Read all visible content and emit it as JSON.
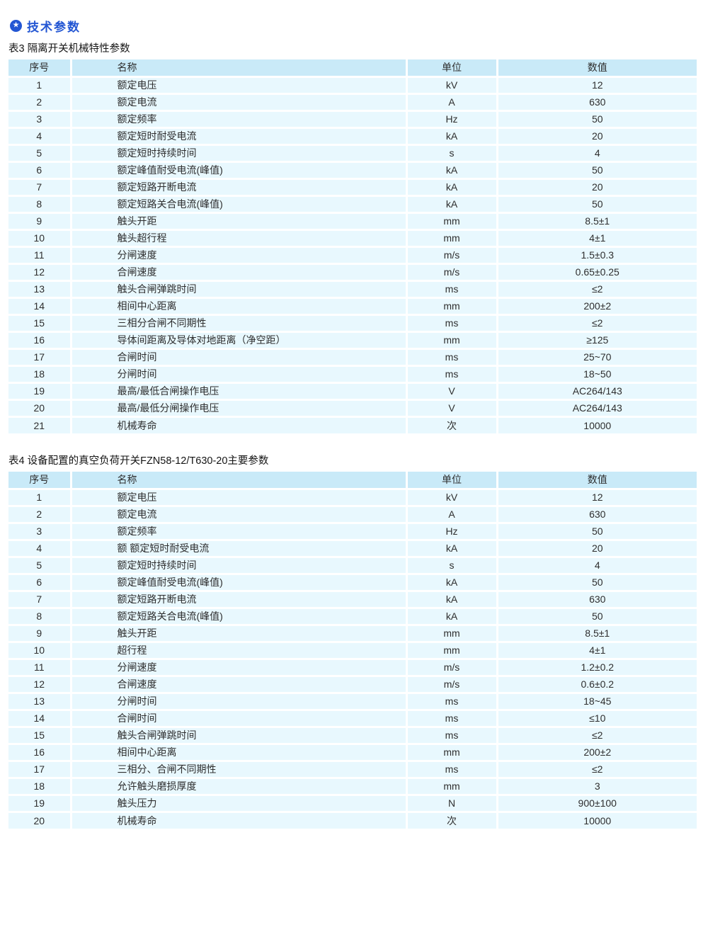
{
  "section": {
    "title": "技术参数",
    "icon": "star-circle",
    "star_glyph": "★"
  },
  "theme": {
    "accent": "#2356d3",
    "table_header_bg": "#c9eaf8",
    "table_row_bg": "#e8f8fe",
    "text": "#2e2e2e"
  },
  "tables": [
    {
      "caption": "表3 隔离开关机械特性参数",
      "columns": [
        "序号",
        "名称",
        "单位",
        "数值"
      ],
      "rows": [
        [
          "1",
          "额定电压",
          "kV",
          "12"
        ],
        [
          "2",
          "额定电流",
          "A",
          "630"
        ],
        [
          "3",
          "额定频率",
          "Hz",
          "50"
        ],
        [
          "4",
          "额定短时耐受电流",
          "kA",
          "20"
        ],
        [
          "5",
          "额定短时持续时间",
          "s",
          "4"
        ],
        [
          "6",
          "额定峰值耐受电流(峰值)",
          "kA",
          "50"
        ],
        [
          "7",
          "额定短路开断电流",
          "kA",
          "20"
        ],
        [
          "8",
          "额定短路关合电流(峰值)",
          "kA",
          "50"
        ],
        [
          "9",
          "触头开距",
          "mm",
          "8.5±1"
        ],
        [
          "10",
          "触头超行程",
          "mm",
          "4±1"
        ],
        [
          "11",
          "分闸速度",
          "m/s",
          "1.5±0.3"
        ],
        [
          "12",
          "合闸速度",
          "m/s",
          "0.65±0.25"
        ],
        [
          "13",
          "触头合闸弹跳时间",
          "ms",
          "≤2"
        ],
        [
          "14",
          "相间中心距离",
          "mm",
          "200±2"
        ],
        [
          "15",
          "三相分合闸不同期性",
          "ms",
          "≤2"
        ],
        [
          "16",
          "导体间距离及导体对地距离（净空距）",
          "mm",
          "≥125"
        ],
        [
          "17",
          "合闸时间",
          "ms",
          "25~70"
        ],
        [
          "18",
          "分闸时间",
          "ms",
          "18~50"
        ],
        [
          "19",
          "最高/最低合闸操作电压",
          "V",
          "AC264/143"
        ],
        [
          "20",
          "最高/最低分闸操作电压",
          "V",
          "AC264/143"
        ],
        [
          "21",
          "机械寿命",
          "次",
          "10000"
        ]
      ]
    },
    {
      "caption": "表4 设备配置的真空负荷开关FZN58-12/T630-20主要参数",
      "columns": [
        "序号",
        "名称",
        "单位",
        "数值"
      ],
      "rows": [
        [
          "1",
          "额定电压",
          "kV",
          "12"
        ],
        [
          "2",
          "额定电流",
          "A",
          "630"
        ],
        [
          "3",
          "额定频率",
          "Hz",
          "50"
        ],
        [
          "4",
          "额 额定短时耐受电流",
          "kA",
          "20"
        ],
        [
          "5",
          "额定短时持续时间",
          "s",
          "4"
        ],
        [
          "6",
          "额定峰值耐受电流(峰值)",
          "kA",
          "50"
        ],
        [
          "7",
          "额定短路开断电流",
          "kA",
          "630"
        ],
        [
          "8",
          "额定短路关合电流(峰值)",
          "kA",
          "50"
        ],
        [
          "9",
          "触头开距",
          "mm",
          "8.5±1"
        ],
        [
          "10",
          "超行程",
          "mm",
          "4±1"
        ],
        [
          "11",
          "分闸速度",
          "m/s",
          "1.2±0.2"
        ],
        [
          "12",
          "合闸速度",
          "m/s",
          "0.6±0.2"
        ],
        [
          "13",
          "分闸时间",
          "ms",
          "18~45"
        ],
        [
          "14",
          "合闸时间",
          "ms",
          "≤10"
        ],
        [
          "15",
          "触头合闸弹跳时间",
          "ms",
          "≤2"
        ],
        [
          "16",
          "相间中心距离",
          "mm",
          "200±2"
        ],
        [
          "17",
          "三相分、合闸不同期性",
          "ms",
          "≤2"
        ],
        [
          "18",
          "允许触头磨损厚度",
          "mm",
          "3"
        ],
        [
          "19",
          "触头压力",
          "N",
          "900±100"
        ],
        [
          "20",
          "机械寿命",
          "次",
          "10000"
        ]
      ]
    }
  ]
}
